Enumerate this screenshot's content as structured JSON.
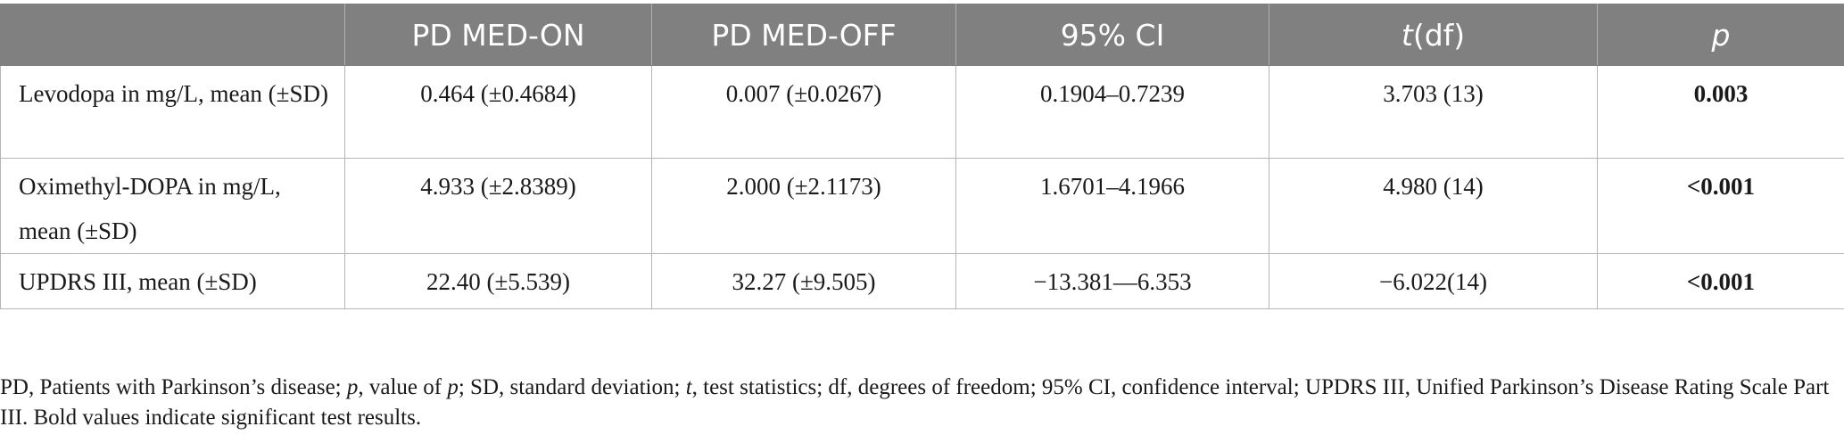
{
  "table": {
    "headers": [
      "",
      "PD MED-ON",
      "PD MED-OFF",
      "95% CI",
      "df",
      "p"
    ],
    "header_t_prefix": "t",
    "header_df_open": "(",
    "header_df_close": ")",
    "rows": [
      {
        "label": "Levodopa in mg/L, mean (±SD)",
        "med_on": "0.464 (±0.4684)",
        "med_off": "0.007 (±0.0267)",
        "ci": "0.1904–0.7239",
        "t_df": "3.703 (13)",
        "p": "0.003"
      },
      {
        "label": "Oximethyl-DOPA in mg/L, mean (±SD)",
        "med_on": "4.933 (±2.8389)",
        "med_off": "2.000 (±2.1173)",
        "ci": "1.6701–4.1966",
        "t_df": "4.980 (14)",
        "p": "<0.001"
      },
      {
        "label": "UPDRS III, mean (±SD)",
        "med_on": "22.40 (±5.539)",
        "med_off": "32.27 (±9.505)",
        "ci": "−13.381—6.353",
        "t_df": "−6.022(14)",
        "p": "<0.001"
      }
    ]
  },
  "footnote": {
    "part1": "PD, Patients with Parkinson’s disease; ",
    "p_sym": "p",
    "part2": ", value of ",
    "p_sym2": "p",
    "part3": "; SD, standard deviation; ",
    "t_sym": "t",
    "part4": ", test statistics; df, degrees of freedom; 95% CI, confidence interval; UPDRS III, Unified Parkinson’s Disease Rating Scale Part III. Bold values indicate significant test results."
  }
}
